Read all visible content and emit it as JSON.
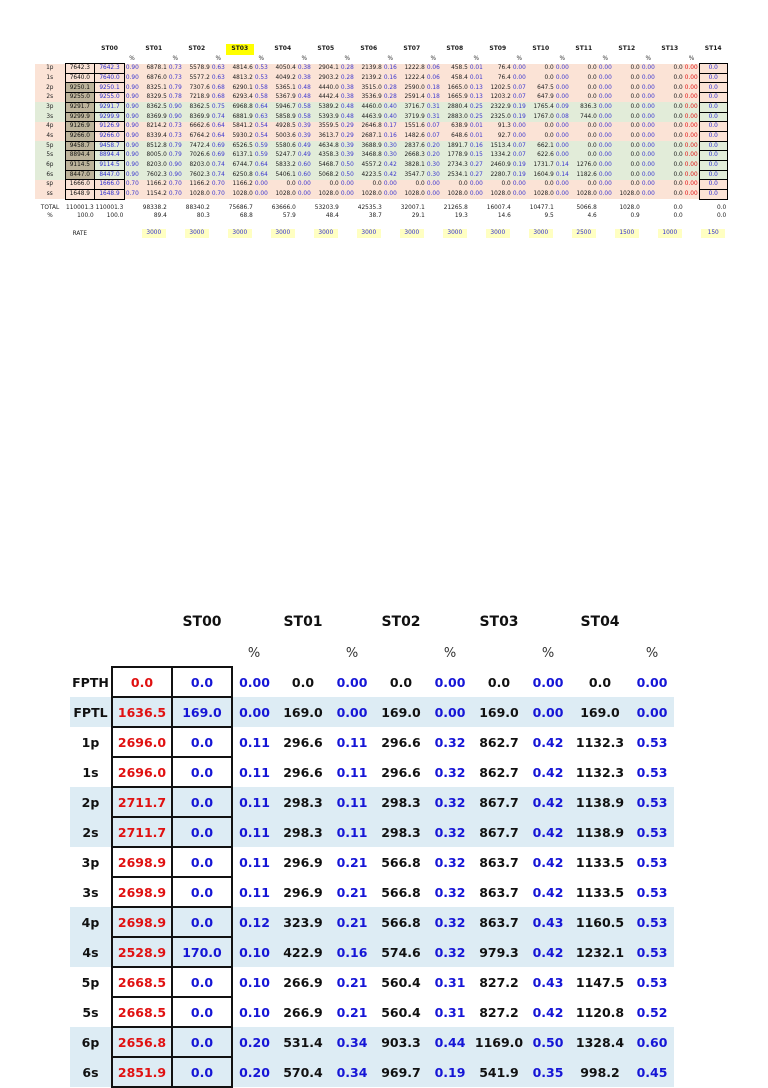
{
  "meta": {
    "colors": {
      "accent_blue": "#2a2ad0",
      "accent_red": "#e01111",
      "band_pink": "#fbe3d6",
      "band_green": "#e2ecd9",
      "band_light_blue": "#ddecf4",
      "box_gray": "#d9d2bf",
      "box_yellow": "#ffffc9",
      "header_highlight": "#ffff00"
    }
  },
  "top_table": {
    "columns": [
      "ST00",
      "ST01",
      "ST02",
      "ST03",
      "ST04",
      "ST05",
      "ST06",
      "ST07",
      "ST08",
      "ST09",
      "ST10",
      "ST11",
      "ST12",
      "ST13",
      "ST14"
    ],
    "highlight_index": 3,
    "pct_label": "%",
    "rows": [
      {
        "label": "1p",
        "band": "pink",
        "gray": "7642.3",
        "st": [
          "7642.3",
          "6878.1",
          "5578.9",
          "4814.6",
          "4050.4",
          "2904.1",
          "2139.8",
          "1222.8",
          "458.5",
          "76.4",
          "0.0",
          "0.0",
          "0.0",
          "0.0",
          "0.0"
        ],
        "pct": [
          "0.90",
          "0.73",
          "0.63",
          "0.53",
          "0.38",
          "0.28",
          "0.16",
          "0.06",
          "0.01",
          "0.00",
          "0.00",
          "0.00",
          "0.00",
          "0.00"
        ]
      },
      {
        "label": "1s",
        "band": "pink",
        "gray": "7640.0",
        "st": [
          "7640.0",
          "6876.0",
          "5577.2",
          "4813.2",
          "4049.2",
          "2903.2",
          "2139.2",
          "1222.4",
          "458.4",
          "76.4",
          "0.0",
          "0.0",
          "0.0",
          "0.0",
          "0.0"
        ],
        "pct": [
          "0.90",
          "0.73",
          "0.63",
          "0.53",
          "0.38",
          "0.28",
          "0.16",
          "0.06",
          "0.01",
          "0.00",
          "0.00",
          "0.00",
          "0.00",
          "0.00"
        ]
      },
      {
        "label": "2p",
        "band": "pink",
        "gray": "9250.1",
        "st": [
          "9250.1",
          "8325.1",
          "7307.6",
          "6290.1",
          "5365.1",
          "4440.0",
          "3515.0",
          "2590.0",
          "1665.0",
          "1202.5",
          "647.5",
          "0.0",
          "0.0",
          "0.0",
          "0.0"
        ],
        "pct": [
          "0.90",
          "0.79",
          "0.68",
          "0.58",
          "0.48",
          "0.38",
          "0.28",
          "0.18",
          "0.13",
          "0.07",
          "0.00",
          "0.00",
          "0.00",
          "0.00"
        ]
      },
      {
        "label": "2s",
        "band": "pink",
        "gray": "9255.0",
        "st": [
          "9255.0",
          "8329.5",
          "7218.9",
          "6293.4",
          "5367.9",
          "4442.4",
          "3536.9",
          "2591.4",
          "1665.9",
          "1203.2",
          "647.9",
          "0.0",
          "0.0",
          "0.0",
          "0.0"
        ],
        "pct": [
          "0.90",
          "0.78",
          "0.68",
          "0.58",
          "0.48",
          "0.38",
          "0.28",
          "0.18",
          "0.13",
          "0.07",
          "0.00",
          "0.00",
          "0.00",
          "0.00"
        ]
      },
      {
        "label": "3p",
        "band": "green",
        "gray": "9291.7",
        "st": [
          "9291.7",
          "8362.5",
          "8362.5",
          "6968.8",
          "5946.7",
          "5389.2",
          "4460.0",
          "3716.7",
          "2880.4",
          "2322.9",
          "1765.4",
          "836.3",
          "0.0",
          "0.0",
          "0.0"
        ],
        "pct": [
          "0.90",
          "0.90",
          "0.75",
          "0.64",
          "0.58",
          "0.48",
          "0.40",
          "0.31",
          "0.25",
          "0.19",
          "0.09",
          "0.00",
          "0.00",
          "0.00"
        ]
      },
      {
        "label": "3s",
        "band": "green",
        "gray": "9299.9",
        "st": [
          "9299.9",
          "8369.9",
          "8369.9",
          "6881.9",
          "5858.9",
          "5393.9",
          "4463.9",
          "3719.9",
          "2883.0",
          "2325.0",
          "1767.0",
          "744.0",
          "0.0",
          "0.0",
          "0.0"
        ],
        "pct": [
          "0.90",
          "0.90",
          "0.74",
          "0.63",
          "0.58",
          "0.48",
          "0.40",
          "0.31",
          "0.25",
          "0.19",
          "0.08",
          "0.00",
          "0.00",
          "0.00"
        ]
      },
      {
        "label": "4p",
        "band": "pink",
        "gray": "9126.9",
        "st": [
          "9126.9",
          "8214.2",
          "6662.6",
          "5841.2",
          "4928.5",
          "3559.5",
          "2646.8",
          "1551.6",
          "638.9",
          "91.3",
          "0.0",
          "0.0",
          "0.0",
          "0.0",
          "0.0"
        ],
        "pct": [
          "0.90",
          "0.73",
          "0.64",
          "0.54",
          "0.39",
          "0.29",
          "0.17",
          "0.07",
          "0.01",
          "0.00",
          "0.00",
          "0.00",
          "0.00",
          "0.00"
        ]
      },
      {
        "label": "4s",
        "band": "pink",
        "gray": "9266.0",
        "st": [
          "9266.0",
          "8339.4",
          "6764.2",
          "5930.2",
          "5003.6",
          "3613.7",
          "2687.1",
          "1482.6",
          "648.6",
          "92.7",
          "0.0",
          "0.0",
          "0.0",
          "0.0",
          "0.0"
        ],
        "pct": [
          "0.90",
          "0.73",
          "0.64",
          "0.54",
          "0.39",
          "0.29",
          "0.16",
          "0.07",
          "0.01",
          "0.00",
          "0.00",
          "0.00",
          "0.00",
          "0.00"
        ]
      },
      {
        "label": "5p",
        "band": "green",
        "gray": "9458.7",
        "st": [
          "9458.7",
          "8512.8",
          "7472.4",
          "6526.5",
          "5580.6",
          "4634.8",
          "3688.9",
          "2837.6",
          "1891.7",
          "1513.4",
          "662.1",
          "0.0",
          "0.0",
          "0.0",
          "0.0"
        ],
        "pct": [
          "0.90",
          "0.79",
          "0.69",
          "0.59",
          "0.49",
          "0.39",
          "0.30",
          "0.20",
          "0.16",
          "0.07",
          "0.00",
          "0.00",
          "0.00",
          "0.00"
        ]
      },
      {
        "label": "5s",
        "band": "green",
        "gray": "8894.4",
        "st": [
          "8894.4",
          "8005.0",
          "7026.6",
          "6137.1",
          "5247.7",
          "4358.3",
          "3468.8",
          "2668.3",
          "1778.9",
          "1334.2",
          "622.6",
          "0.0",
          "0.0",
          "0.0",
          "0.0"
        ],
        "pct": [
          "0.90",
          "0.79",
          "0.69",
          "0.59",
          "0.49",
          "0.39",
          "0.30",
          "0.20",
          "0.15",
          "0.07",
          "0.00",
          "0.00",
          "0.00",
          "0.00"
        ]
      },
      {
        "label": "6p",
        "band": "green",
        "gray": "9114.5",
        "st": [
          "9114.5",
          "8203.0",
          "8203.0",
          "6744.7",
          "5833.2",
          "5468.7",
          "4557.2",
          "3828.1",
          "2734.3",
          "2460.9",
          "1731.7",
          "1276.0",
          "0.0",
          "0.0",
          "0.0"
        ],
        "pct": [
          "0.90",
          "0.90",
          "0.74",
          "0.64",
          "0.60",
          "0.50",
          "0.42",
          "0.30",
          "0.27",
          "0.19",
          "0.14",
          "0.00",
          "0.00",
          "0.00"
        ]
      },
      {
        "label": "6s",
        "band": "green",
        "gray": "8447.0",
        "st": [
          "8447.0",
          "7602.3",
          "7602.3",
          "6250.8",
          "5406.1",
          "5068.2",
          "4223.5",
          "3547.7",
          "2534.1",
          "2280.7",
          "1604.9",
          "1182.6",
          "0.0",
          "0.0",
          "0.0"
        ],
        "pct": [
          "0.90",
          "0.90",
          "0.74",
          "0.64",
          "0.60",
          "0.50",
          "0.42",
          "0.30",
          "0.27",
          "0.19",
          "0.14",
          "0.00",
          "0.00",
          "0.00"
        ]
      },
      {
        "label": "sp",
        "band": "pink",
        "gray": "1666.0",
        "st": [
          "1666.0",
          "1166.2",
          "1166.2",
          "1166.2",
          "0.0",
          "0.0",
          "0.0",
          "0.0",
          "0.0",
          "0.0",
          "0.0",
          "0.0",
          "0.0",
          "0.0",
          "0.0"
        ],
        "pct": [
          "0.70",
          "0.70",
          "0.70",
          "0.00",
          "0.00",
          "0.00",
          "0.00",
          "0.00",
          "0.00",
          "0.00",
          "0.00",
          "0.00",
          "0.00",
          "0.00"
        ]
      },
      {
        "label": "ss",
        "band": "pink",
        "gray": "1648.9",
        "st": [
          "1648.9",
          "1154.2",
          "1028.0",
          "1028.0",
          "1028.0",
          "1028.0",
          "1028.0",
          "1028.0",
          "1028.0",
          "1028.0",
          "1028.0",
          "1028.0",
          "1028.0",
          "0.0",
          "0.0"
        ],
        "pct": [
          "0.70",
          "0.70",
          "0.70",
          "0.00",
          "0.00",
          "0.00",
          "0.00",
          "0.00",
          "0.00",
          "0.00",
          "0.00",
          "0.00",
          "0.00",
          "0.00"
        ]
      }
    ],
    "total": {
      "label": "TOTAL",
      "gray": "110001.3",
      "st": [
        "110001.3",
        "98338.2",
        "88340.2",
        "75686.7",
        "63666.0",
        "53203.9",
        "42535.3",
        "32007.1",
        "21265.8",
        "16007.4",
        "10477.1",
        "5066.8",
        "1028.0",
        "0.0",
        "0.0"
      ]
    },
    "percent": {
      "label": "%",
      "gray": "100.0",
      "st": [
        "100.0",
        "89.4",
        "80.3",
        "68.8",
        "57.9",
        "48.4",
        "38.7",
        "29.1",
        "19.3",
        "14.6",
        "9.5",
        "4.6",
        "0.9",
        "0.0",
        "0.0"
      ]
    },
    "rate": {
      "label": "RATE",
      "values": [
        "3000",
        "3000",
        "3000",
        "3000",
        "3000",
        "3000",
        "3000",
        "3000",
        "3000",
        "3000",
        "2500",
        "1500",
        "1000",
        "150"
      ]
    }
  },
  "bottom_table": {
    "columns": [
      "ST00",
      "ST01",
      "ST02",
      "ST03",
      "ST04"
    ],
    "pct_label": "%",
    "rows": [
      {
        "label": "FPTH",
        "band": "white",
        "gray": "0.0",
        "st": [
          "0.0",
          "0.0",
          "0.0",
          "0.0",
          "0.0"
        ],
        "pct": [
          "0.00",
          "0.00",
          "0.00",
          "0.00",
          "0.00"
        ]
      },
      {
        "label": "FPTL",
        "band": "blue",
        "gray": "1636.5",
        "st": [
          "169.0",
          "169.0",
          "169.0",
          "169.0",
          "169.0"
        ],
        "pct": [
          "0.00",
          "0.00",
          "0.00",
          "0.00",
          "0.00"
        ]
      },
      {
        "label": "1p",
        "band": "white",
        "gray": "2696.0",
        "st": [
          "0.0",
          "296.6",
          "296.6",
          "862.7",
          "1132.3"
        ],
        "pct": [
          "0.11",
          "0.11",
          "0.32",
          "0.42",
          "0.53"
        ]
      },
      {
        "label": "1s",
        "band": "white",
        "gray": "2696.0",
        "st": [
          "0.0",
          "296.6",
          "296.6",
          "862.7",
          "1132.3"
        ],
        "pct": [
          "0.11",
          "0.11",
          "0.32",
          "0.42",
          "0.53"
        ]
      },
      {
        "label": "2p",
        "band": "blue",
        "gray": "2711.7",
        "st": [
          "0.0",
          "298.3",
          "298.3",
          "867.7",
          "1138.9"
        ],
        "pct": [
          "0.11",
          "0.11",
          "0.32",
          "0.42",
          "0.53"
        ]
      },
      {
        "label": "2s",
        "band": "blue",
        "gray": "2711.7",
        "st": [
          "0.0",
          "298.3",
          "298.3",
          "867.7",
          "1138.9"
        ],
        "pct": [
          "0.11",
          "0.11",
          "0.32",
          "0.42",
          "0.53"
        ]
      },
      {
        "label": "3p",
        "band": "white",
        "gray": "2698.9",
        "st": [
          "0.0",
          "296.9",
          "566.8",
          "863.7",
          "1133.5"
        ],
        "pct": [
          "0.11",
          "0.21",
          "0.32",
          "0.42",
          "0.53"
        ]
      },
      {
        "label": "3s",
        "band": "white",
        "gray": "2698.9",
        "st": [
          "0.0",
          "296.9",
          "566.8",
          "863.7",
          "1133.5"
        ],
        "pct": [
          "0.11",
          "0.21",
          "0.32",
          "0.42",
          "0.53"
        ]
      },
      {
        "label": "4p",
        "band": "blue",
        "gray": "2698.9",
        "st": [
          "0.0",
          "323.9",
          "566.8",
          "863.7",
          "1160.5"
        ],
        "pct": [
          "0.12",
          "0.21",
          "0.32",
          "0.43",
          "0.53"
        ]
      },
      {
        "label": "4s",
        "band": "blue",
        "gray": "2528.9",
        "st": [
          "170.0",
          "422.9",
          "574.6",
          "979.3",
          "1232.1"
        ],
        "pct": [
          "0.10",
          "0.16",
          "0.32",
          "0.42",
          "0.53"
        ]
      },
      {
        "label": "5p",
        "band": "white",
        "gray": "2668.5",
        "st": [
          "0.0",
          "266.9",
          "560.4",
          "827.2",
          "1147.5"
        ],
        "pct": [
          "0.10",
          "0.21",
          "0.31",
          "0.43",
          "0.53"
        ]
      },
      {
        "label": "5s",
        "band": "white",
        "gray": "2668.5",
        "st": [
          "0.0",
          "266.9",
          "560.4",
          "827.2",
          "1120.8"
        ],
        "pct": [
          "0.10",
          "0.21",
          "0.31",
          "0.42",
          "0.52"
        ]
      },
      {
        "label": "6p",
        "band": "blue",
        "gray": "2656.8",
        "st": [
          "0.0",
          "531.4",
          "903.3",
          "1169.0",
          "1328.4"
        ],
        "pct": [
          "0.20",
          "0.34",
          "0.44",
          "0.50",
          "0.60"
        ]
      },
      {
        "label": "6s",
        "band": "blue",
        "gray": "2851.9",
        "st": [
          "0.0",
          "570.4",
          "969.7",
          "541.9",
          "998.2"
        ],
        "pct": [
          "0.20",
          "0.34",
          "0.19",
          "0.35",
          "0.45"
        ]
      }
    ]
  }
}
